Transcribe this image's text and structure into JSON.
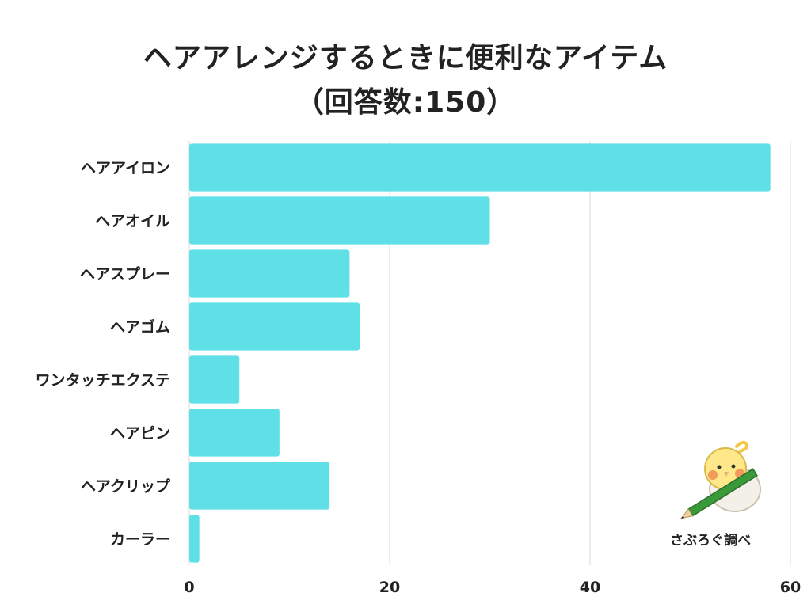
{
  "chart_data": {
    "type": "bar",
    "orientation": "horizontal",
    "title": "ヘアアレンジするときに便利なアイテム",
    "subtitle": "（回答数:150）",
    "categories": [
      "ヘアアイロン",
      "ヘアオイル",
      "ヘアスプレー",
      "ヘアゴム",
      "ワンタッチエクステ",
      "ヘアピン",
      "ヘアクリップ",
      "カーラー"
    ],
    "values": [
      58,
      30,
      16,
      17,
      5,
      9,
      14,
      1
    ],
    "xlim": [
      0,
      60
    ],
    "xticks": [
      0,
      20,
      40,
      60
    ],
    "grid": true,
    "bar_color": "#5ee0e6",
    "grid_color": "#e6e6e6"
  },
  "credit": "さぶろぐ調べ",
  "mascot_icon": "bird-with-pencil-icon"
}
